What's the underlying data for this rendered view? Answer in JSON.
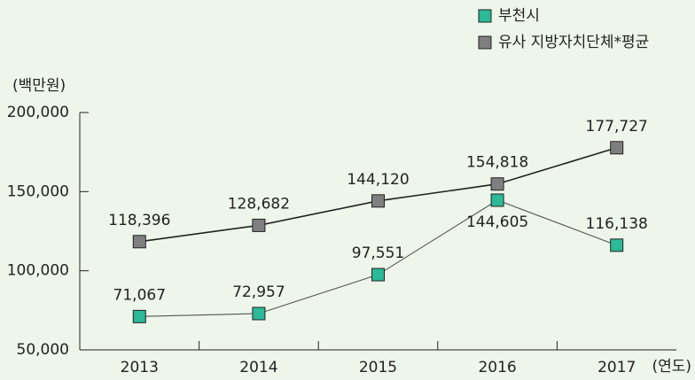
{
  "chart_data": {
    "type": "line",
    "y_label": "(백만원)",
    "x_label": "(연도)",
    "categories": [
      "2013",
      "2014",
      "2015",
      "2016",
      "2017"
    ],
    "series": [
      {
        "name": "부천시",
        "color": "#2bb996",
        "line_color": "#555555",
        "values": [
          71067,
          72957,
          97551,
          144605,
          116138
        ],
        "value_labels": [
          "71,067",
          "72,957",
          "97,551",
          "144,605",
          "116,138"
        ]
      },
      {
        "name": "유사 지방자치단체*평균",
        "color": "#7f7f7f",
        "line_color": "#222222",
        "values": [
          118396,
          128682,
          144120,
          154818,
          177727
        ],
        "value_labels": [
          "118,396",
          "128,682",
          "144,120",
          "154,818",
          "177,727"
        ]
      }
    ],
    "ylim": [
      50000,
      200000
    ],
    "yticks": [
      {
        "value": 50000,
        "label": "50,000"
      },
      {
        "value": 100000,
        "label": "100,000"
      },
      {
        "value": 150000,
        "label": "150,000"
      },
      {
        "value": 200000,
        "label": "200,000"
      }
    ]
  }
}
